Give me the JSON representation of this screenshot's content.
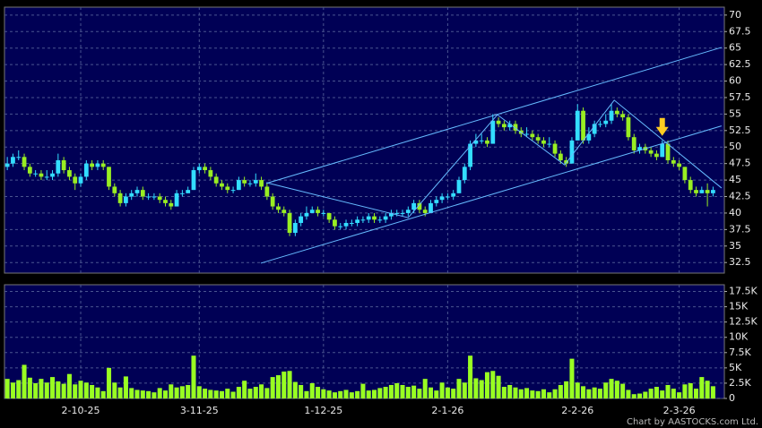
{
  "chart_data": [
    {
      "type": "candlestick",
      "up_color": "#33ddff",
      "down_color": "#99ee22",
      "grid": true,
      "xlim": [
        -0.5,
        127
      ],
      "ylim": [
        30.9,
        71.2
      ],
      "yticks": [
        70,
        67.5,
        65,
        62.5,
        60,
        57.5,
        55,
        52.5,
        50,
        47.5,
        45,
        42.5,
        40,
        37.5,
        35,
        32.5
      ],
      "ohlc": [
        [
          47,
          48.5,
          46.5,
          47.5
        ],
        [
          47.5,
          49,
          47,
          48.5
        ],
        [
          48.5,
          49.5,
          48,
          48.5
        ],
        [
          48.5,
          49,
          46.5,
          47
        ],
        [
          47,
          47.5,
          45.5,
          46
        ],
        [
          46,
          46.5,
          45.5,
          46
        ],
        [
          46,
          46.5,
          45,
          45.5
        ],
        [
          45.5,
          46.5,
          45,
          45.5
        ],
        [
          45.5,
          46.5,
          45,
          46
        ],
        [
          46,
          49,
          45.5,
          48
        ],
        [
          48,
          48.5,
          46,
          46.5
        ],
        [
          46.5,
          47,
          45,
          45.5
        ],
        [
          45.5,
          46,
          43.5,
          44.5
        ],
        [
          44.5,
          46,
          44,
          45.5
        ],
        [
          45.5,
          48,
          45,
          47.5
        ],
        [
          47.5,
          48,
          46.5,
          47
        ],
        [
          47,
          48,
          46.5,
          47.5
        ],
        [
          47.5,
          48,
          46.5,
          47
        ],
        [
          47,
          47,
          43.5,
          44
        ],
        [
          44,
          44.5,
          42.5,
          43
        ],
        [
          43,
          43.5,
          41,
          41.5
        ],
        [
          41.5,
          43,
          41,
          42.5
        ],
        [
          42.5,
          43.5,
          42,
          43
        ],
        [
          43,
          44,
          42.5,
          43.5
        ],
        [
          43.5,
          44,
          42,
          42.5
        ],
        [
          42.5,
          43,
          42,
          42.5
        ],
        [
          42.5,
          43,
          42,
          42.5
        ],
        [
          42.5,
          43,
          41.5,
          42
        ],
        [
          42,
          42.5,
          41,
          41.5
        ],
        [
          41.5,
          42,
          40.5,
          41
        ],
        [
          41,
          43.5,
          41,
          43
        ],
        [
          43,
          43.5,
          42.5,
          43
        ],
        [
          43,
          44,
          43,
          43.5
        ],
        [
          43.5,
          47,
          43.5,
          46.5
        ],
        [
          46.5,
          47.5,
          46,
          47
        ],
        [
          47,
          47.5,
          46,
          46.5
        ],
        [
          46.5,
          47,
          45,
          45.5
        ],
        [
          45.5,
          46,
          44,
          44.5
        ],
        [
          44.5,
          45,
          43.5,
          44
        ],
        [
          44,
          44.5,
          43,
          43.5
        ],
        [
          43.5,
          44,
          43,
          43.5
        ],
        [
          43.5,
          45.5,
          43.5,
          45
        ],
        [
          45,
          45.5,
          44,
          44.5
        ],
        [
          44.5,
          45,
          44,
          44.5
        ],
        [
          44.5,
          46,
          44,
          45
        ],
        [
          45,
          45.5,
          43.5,
          44
        ],
        [
          44,
          44.5,
          42,
          42.5
        ],
        [
          42.5,
          43,
          40.5,
          41
        ],
        [
          41,
          41.5,
          40,
          40.5
        ],
        [
          40.5,
          41,
          39.5,
          40
        ],
        [
          40,
          40.5,
          36.5,
          37
        ],
        [
          37,
          39,
          36.5,
          38.5
        ],
        [
          38.5,
          40,
          38,
          39.5
        ],
        [
          39.5,
          41,
          39,
          40
        ],
        [
          40,
          41,
          40,
          40.5
        ],
        [
          40.5,
          41,
          39.5,
          40
        ],
        [
          40,
          40.5,
          39.5,
          40
        ],
        [
          40,
          40,
          38.5,
          39
        ],
        [
          39,
          39.5,
          37.5,
          38
        ],
        [
          38,
          38.5,
          37.5,
          38
        ],
        [
          38,
          39,
          37.5,
          38.5
        ],
        [
          38.5,
          39,
          38,
          38.5
        ],
        [
          38.5,
          39.5,
          38,
          39
        ],
        [
          39,
          39.5,
          38.5,
          39
        ],
        [
          39,
          40,
          38.5,
          39.5
        ],
        [
          39.5,
          40,
          38.5,
          39
        ],
        [
          39,
          39.5,
          38.5,
          39
        ],
        [
          39,
          40,
          38.5,
          39.5
        ],
        [
          39.5,
          40.5,
          39,
          40
        ],
        [
          40,
          40.5,
          39.5,
          40
        ],
        [
          40,
          40.5,
          39.5,
          40
        ],
        [
          40,
          41,
          39.5,
          40.5
        ],
        [
          40.5,
          42,
          40,
          41.5
        ],
        [
          41.5,
          42,
          40,
          40.5
        ],
        [
          40.5,
          41,
          39.5,
          40
        ],
        [
          40,
          42,
          40,
          41.5
        ],
        [
          41.5,
          42.5,
          41,
          42
        ],
        [
          42,
          43,
          41.5,
          42.5
        ],
        [
          42.5,
          43,
          42,
          42.5
        ],
        [
          42.5,
          43.5,
          42,
          43
        ],
        [
          43,
          45.5,
          43,
          45
        ],
        [
          45,
          47.5,
          44.5,
          47
        ],
        [
          47,
          51,
          46.5,
          50.5
        ],
        [
          50.5,
          52,
          50,
          51
        ],
        [
          51,
          52,
          50.5,
          51
        ],
        [
          51,
          51.5,
          50,
          50.5
        ],
        [
          50.5,
          55,
          50.5,
          54
        ],
        [
          54,
          54.5,
          53,
          53.5
        ],
        [
          53.5,
          54,
          52.5,
          53
        ],
        [
          53,
          54,
          52.5,
          53.5
        ],
        [
          53.5,
          54,
          52,
          52.5
        ],
        [
          52.5,
          53,
          51.5,
          52
        ],
        [
          52,
          53,
          51.5,
          52
        ],
        [
          52,
          52.5,
          51,
          51.5
        ],
        [
          51.5,
          52,
          50.5,
          51
        ],
        [
          51,
          51.5,
          50,
          50.5
        ],
        [
          50.5,
          51.5,
          50,
          50.5
        ],
        [
          50.5,
          51,
          48.5,
          49
        ],
        [
          49,
          49.5,
          47.5,
          48
        ],
        [
          48,
          48.5,
          47,
          47.5
        ],
        [
          47.5,
          51.5,
          47.5,
          51
        ],
        [
          51,
          56.5,
          51,
          55.5
        ],
        [
          55.5,
          56,
          50.5,
          51
        ],
        [
          51,
          53,
          50.5,
          52
        ],
        [
          52,
          54,
          51.5,
          53.5
        ],
        [
          53.5,
          54,
          53,
          53.5
        ],
        [
          53.5,
          55,
          53,
          54
        ],
        [
          54,
          56.5,
          53.5,
          55.5
        ],
        [
          55.5,
          56,
          54.5,
          55
        ],
        [
          55,
          55.5,
          54,
          54.5
        ],
        [
          54.5,
          55,
          51,
          51.5
        ],
        [
          51.5,
          52,
          49,
          49.5
        ],
        [
          49.5,
          50.5,
          49,
          50
        ],
        [
          50,
          50.5,
          49,
          49.5
        ],
        [
          49.5,
          50,
          48.5,
          49
        ],
        [
          49,
          49.5,
          48,
          48.5
        ],
        [
          48.5,
          51,
          48.5,
          50.5
        ],
        [
          50.5,
          51,
          47.5,
          48
        ],
        [
          48,
          48.5,
          47,
          47.5
        ],
        [
          47.5,
          48,
          46.5,
          47
        ],
        [
          47,
          47,
          44.5,
          45
        ],
        [
          45,
          45.5,
          43,
          43.5
        ],
        [
          43.5,
          44,
          42.5,
          43
        ],
        [
          43,
          44,
          43,
          43.5
        ],
        [
          43.5,
          44.5,
          41,
          43
        ],
        [
          43,
          44,
          42.5,
          43.5
        ]
      ],
      "trendlines": [
        {
          "color": "#66bbff",
          "x": [
            45.9,
            126.5
          ],
          "y": [
            44.5,
            65.1
          ]
        },
        {
          "color": "#66bbff",
          "x": [
            44.9,
            126.5
          ],
          "y": [
            32.4,
            53.2
          ]
        },
        {
          "color": "#66bbff",
          "x": [
            45.9,
            71.0,
            86.8,
            98.7,
            107.5,
            126.5
          ],
          "y": [
            44.6,
            39.3,
            54.9,
            47.3,
            57.1,
            43.8
          ]
        }
      ],
      "arrow": {
        "color": "#ffcc22",
        "x": 116,
        "y": 51.7
      }
    },
    {
      "type": "bar",
      "color": "#99ff22",
      "grid": true,
      "xlim": [
        -0.5,
        127
      ],
      "ylim": [
        0,
        18600
      ],
      "xticks": [
        {
          "value": 13,
          "label": "2-10-25"
        },
        {
          "value": 34,
          "label": "3-11-25"
        },
        {
          "value": 56,
          "label": "1-12-25"
        },
        {
          "value": 78,
          "label": "2-1-26"
        },
        {
          "value": 101,
          "label": "2-2-26"
        },
        {
          "value": 119,
          "label": "2-3-26"
        }
      ],
      "yticks": [
        {
          "value": 17500,
          "label": "17.5K"
        },
        {
          "value": 15000,
          "label": "15K"
        },
        {
          "value": 12500,
          "label": "12.5K"
        },
        {
          "value": 10000,
          "label": "10K"
        },
        {
          "value": 7500,
          "label": "7.5K"
        },
        {
          "value": 5000,
          "label": "5K"
        },
        {
          "value": 2500,
          "label": "2.5K"
        },
        0
      ],
      "values": [
        3200,
        2600,
        3000,
        5500,
        3400,
        2500,
        3200,
        2600,
        3500,
        2800,
        2400,
        4000,
        2300,
        2900,
        2600,
        2200,
        1800,
        1200,
        5000,
        2600,
        1800,
        3600,
        1700,
        1400,
        1300,
        1200,
        1000,
        1700,
        1300,
        2300,
        1800,
        2000,
        2200,
        7000,
        2000,
        1600,
        1400,
        1300,
        1200,
        1600,
        1100,
        1900,
        2900,
        1600,
        1900,
        2300,
        1700,
        3500,
        3800,
        4400,
        4500,
        2700,
        2200,
        1200,
        2500,
        1900,
        1500,
        1300,
        1000,
        1200,
        1400,
        1000,
        1200,
        2400,
        1300,
        1400,
        1700,
        1900,
        2200,
        2500,
        2200,
        1900,
        2100,
        1600,
        3200,
        1800,
        1300,
        2600,
        1800,
        1600,
        3200,
        2600,
        7000,
        3300,
        3000,
        4300,
        4500,
        3700,
        1900,
        2200,
        1800,
        1500,
        1700,
        1300,
        1200,
        1500,
        1000,
        1500,
        2200,
        2800,
        6500,
        2600,
        2000,
        1500,
        1800,
        1600,
        2600,
        3200,
        2900,
        2400,
        1400,
        700,
        800,
        1100,
        1600,
        1900,
        1300,
        2200,
        1600,
        1000,
        2300,
        2500,
        1600,
        3500,
        2900,
        2000
      ]
    }
  ],
  "footer": "Chart by AASTOCKS.com Ltd."
}
